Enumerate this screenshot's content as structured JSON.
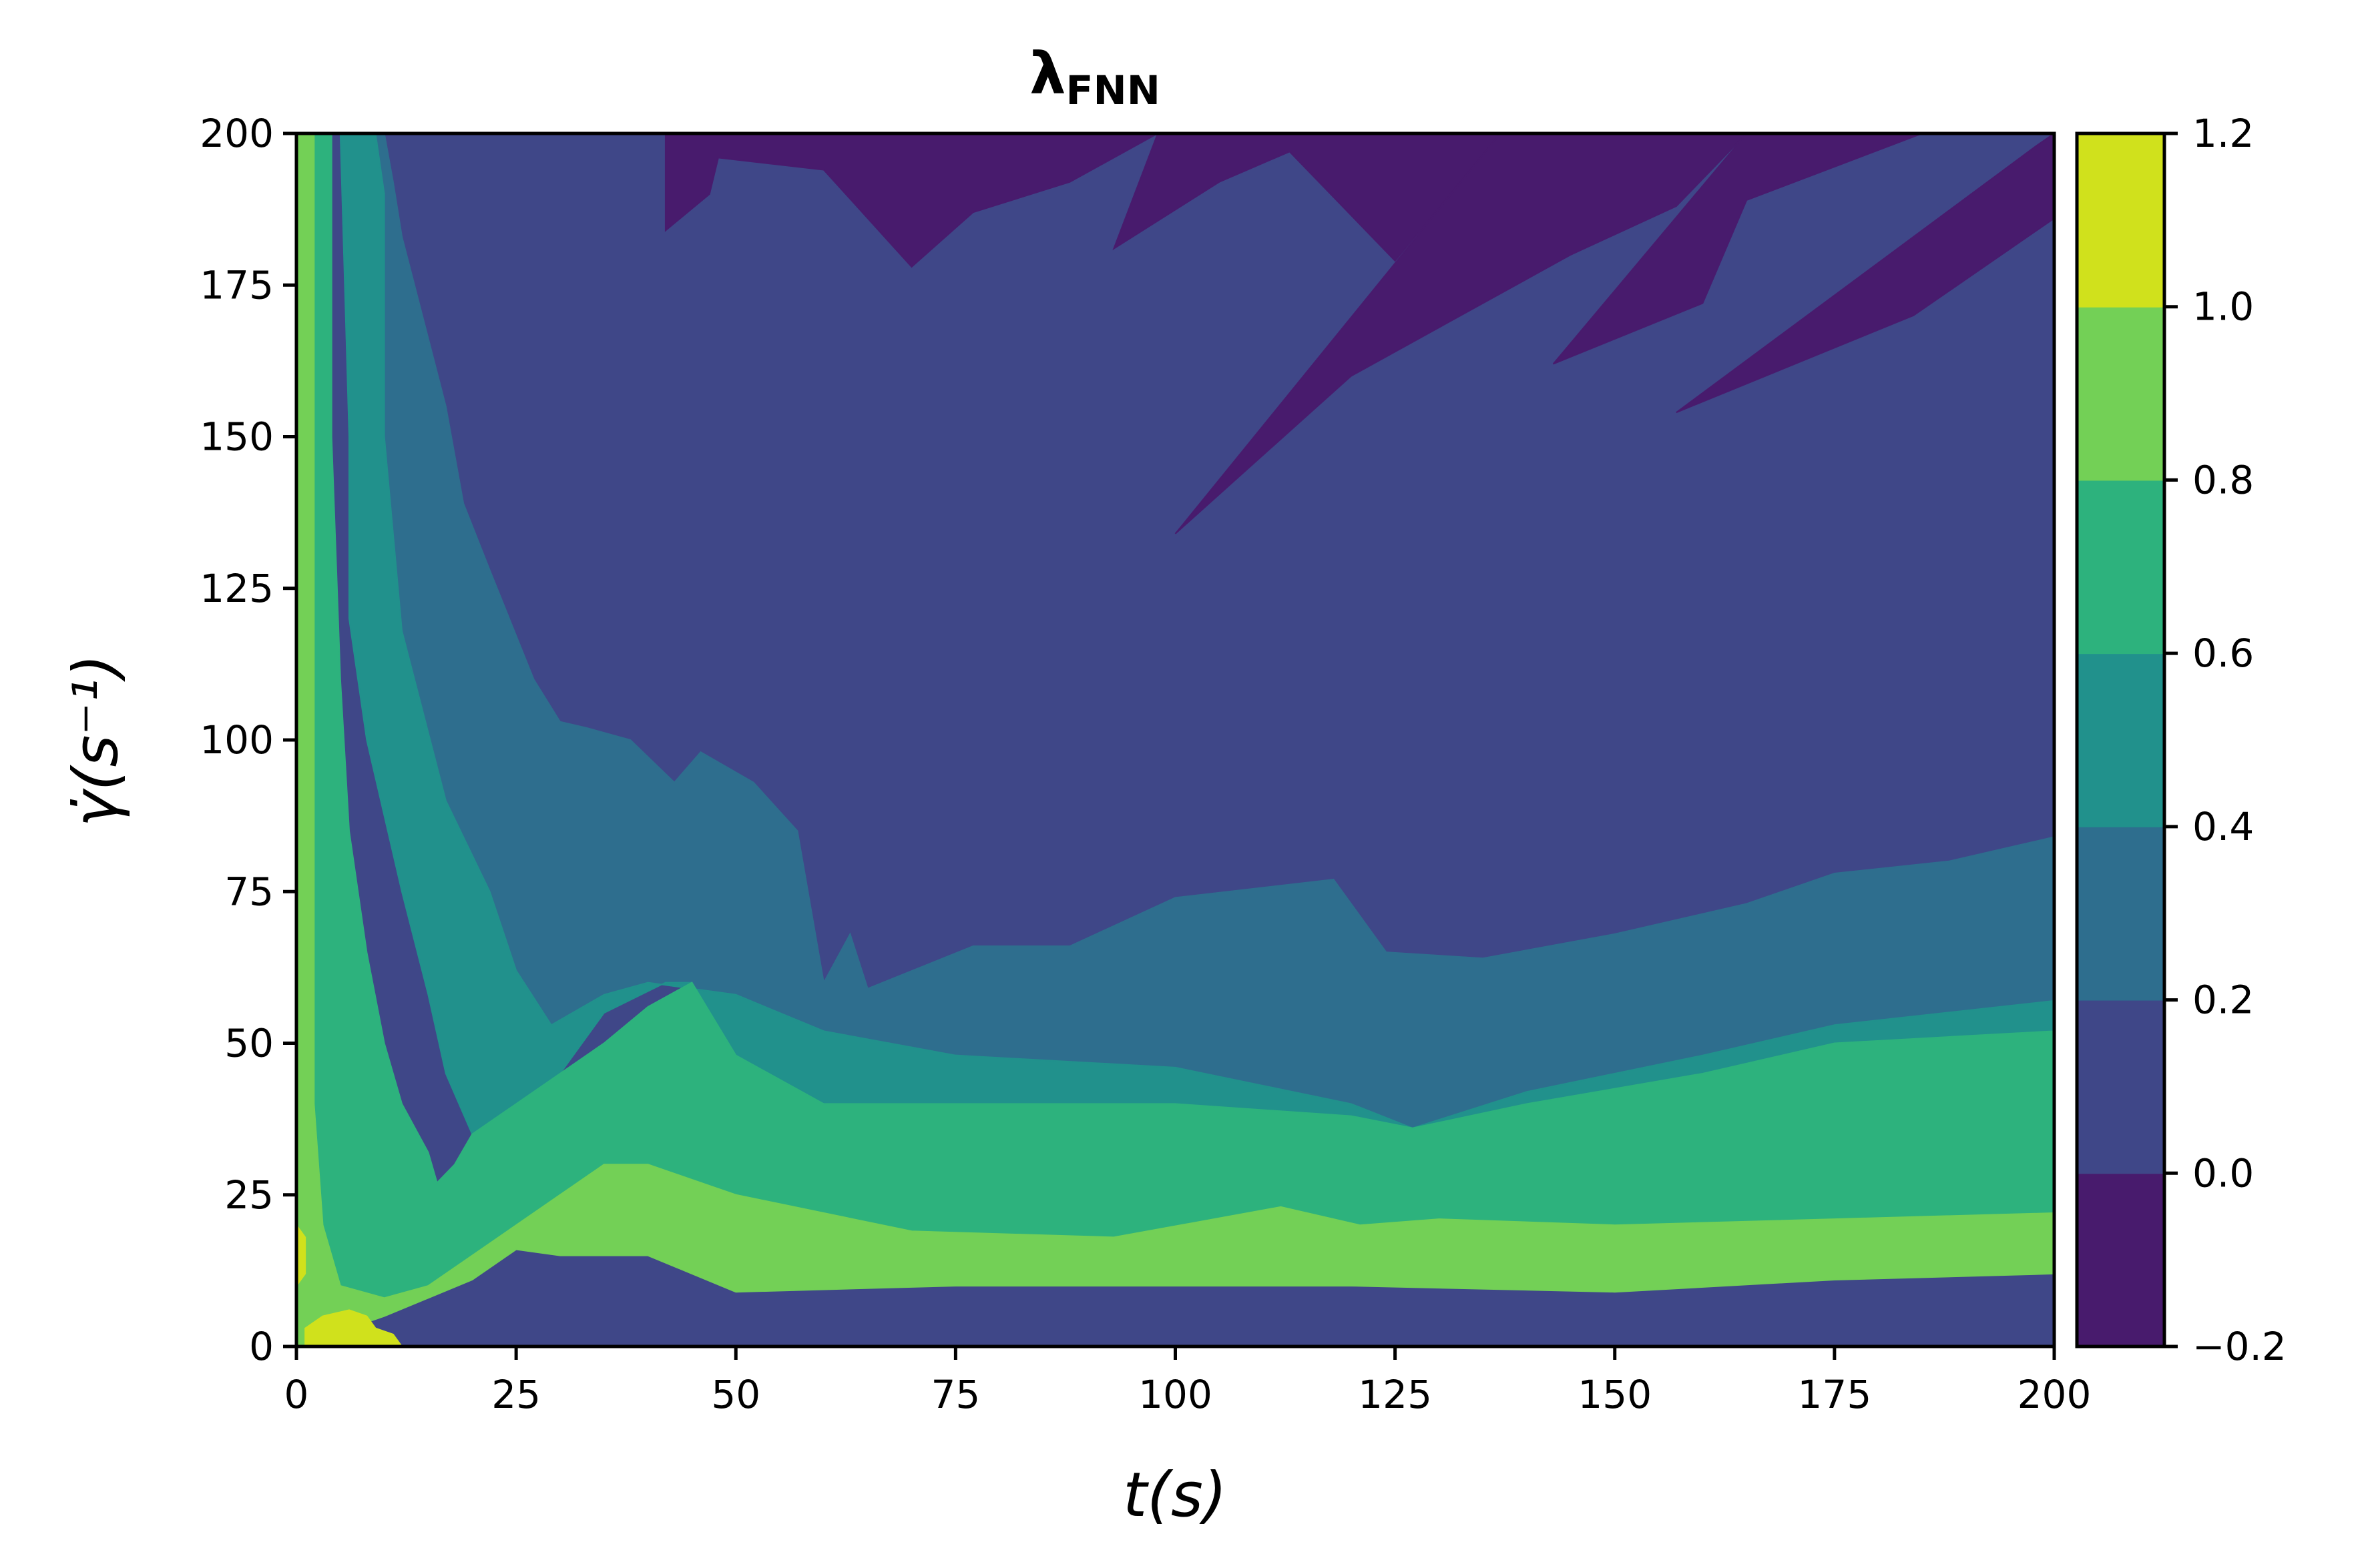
{
  "chart_data": {
    "type": "contourf",
    "title": "λ",
    "title_subscript": "FNN",
    "xlabel": "t(s)",
    "ylabel": "γ̇(s⁻¹)",
    "xlim": [
      0,
      200
    ],
    "ylim": [
      0,
      200
    ],
    "xticks": [
      0,
      25,
      50,
      75,
      100,
      125,
      150,
      175,
      200
    ],
    "yticks": [
      0,
      25,
      50,
      75,
      100,
      125,
      150,
      175,
      200
    ],
    "grid": false,
    "colorbar": {
      "levels": [
        -0.2,
        0.0,
        0.2,
        0.4,
        0.6,
        0.8,
        1.0,
        1.2
      ],
      "tick_labels": [
        "−0.2",
        "0.0",
        "0.2",
        "0.4",
        "0.6",
        "0.8",
        "1.0",
        "1.2"
      ],
      "colors": [
        "#481b6d",
        "#3f4788",
        "#2e6e8e",
        "#21918c",
        "#2db27d",
        "#73d056",
        "#d0e11c"
      ]
    },
    "regions": [
      {
        "level_min": -0.2,
        "level_max": 0.0,
        "polygon": [
          [
            42,
            200
          ],
          [
            42,
            184
          ],
          [
            47,
            190
          ],
          [
            48,
            196
          ],
          [
            60,
            194
          ],
          [
            70,
            178
          ],
          [
            77,
            187
          ],
          [
            88,
            192
          ],
          [
            98,
            200
          ]
        ]
      },
      {
        "level_min": -0.2,
        "level_max": 0.0,
        "polygon": [
          [
            98,
            200
          ],
          [
            93,
            181
          ],
          [
            105,
            192
          ],
          [
            113,
            197
          ],
          [
            125,
            179
          ],
          [
            133,
            193
          ],
          [
            137,
            200
          ]
        ]
      },
      {
        "level_min": -0.2,
        "level_max": 0.0,
        "polygon": [
          [
            137,
            200
          ],
          [
            100,
            134
          ],
          [
            120,
            160
          ],
          [
            145,
            180
          ],
          [
            157,
            188
          ],
          [
            165,
            200
          ]
        ]
      },
      {
        "level_min": -0.2,
        "level_max": 0.0,
        "polygon": [
          [
            165,
            200
          ],
          [
            143,
            162
          ],
          [
            160,
            172
          ],
          [
            165,
            189
          ],
          [
            185,
            200
          ],
          [
            200,
            200
          ],
          [
            200,
            186
          ],
          [
            184,
            170
          ],
          [
            157,
            154
          ],
          [
            198,
            198
          ],
          [
            200,
            200
          ]
        ]
      },
      {
        "level_min": 0.0,
        "level_max": 0.2,
        "polygon": [
          [
            9,
            200
          ],
          [
            200,
            200
          ],
          [
            200,
            84
          ],
          [
            188,
            80
          ],
          [
            175,
            78
          ],
          [
            165,
            73
          ],
          [
            150,
            68
          ],
          [
            135,
            64
          ],
          [
            124,
            65
          ],
          [
            118,
            77
          ],
          [
            100,
            74
          ],
          [
            88,
            66
          ],
          [
            77,
            66
          ],
          [
            65,
            59
          ],
          [
            63,
            68
          ],
          [
            60,
            60
          ],
          [
            57,
            85
          ],
          [
            52,
            93
          ],
          [
            46,
            98
          ],
          [
            43,
            93
          ],
          [
            38,
            100
          ],
          [
            33,
            102
          ],
          [
            30,
            103
          ],
          [
            27,
            110
          ],
          [
            22,
            128
          ],
          [
            19,
            139
          ],
          [
            17,
            155
          ],
          [
            12,
            183
          ],
          [
            11,
            192
          ],
          [
            10,
            200
          ]
        ]
      },
      {
        "level_min": 0.0,
        "level_max": 0.2,
        "polygon": [
          [
            175,
            52
          ],
          [
            188,
            58
          ],
          [
            200,
            66
          ],
          [
            200,
            58
          ],
          [
            190,
            55
          ],
          [
            180,
            53
          ]
        ]
      },
      {
        "level_min": 0.2,
        "level_max": 0.4,
        "polygon": [
          [
            5,
            200
          ],
          [
            9,
            200
          ],
          [
            10,
            190
          ],
          [
            10,
            150
          ],
          [
            12,
            118
          ],
          [
            17,
            90
          ],
          [
            22,
            75
          ],
          [
            25,
            62
          ],
          [
            29,
            53
          ],
          [
            35,
            58
          ],
          [
            40,
            60
          ],
          [
            50,
            58
          ],
          [
            60,
            52
          ],
          [
            75,
            48
          ],
          [
            100,
            46
          ],
          [
            120,
            40
          ],
          [
            127,
            36
          ],
          [
            140,
            42
          ],
          [
            160,
            48
          ],
          [
            175,
            53
          ],
          [
            200,
            57
          ],
          [
            200,
            84
          ],
          [
            188,
            80
          ],
          [
            175,
            78
          ],
          [
            165,
            73
          ],
          [
            150,
            68
          ],
          [
            135,
            64
          ],
          [
            124,
            65
          ],
          [
            118,
            77
          ],
          [
            100,
            74
          ],
          [
            88,
            66
          ],
          [
            77,
            66
          ],
          [
            65,
            59
          ],
          [
            63,
            68
          ],
          [
            60,
            60
          ],
          [
            57,
            85
          ],
          [
            52,
            93
          ],
          [
            46,
            98
          ],
          [
            43,
            93
          ],
          [
            38,
            100
          ],
          [
            33,
            102
          ],
          [
            30,
            103
          ],
          [
            27,
            110
          ],
          [
            22,
            128
          ],
          [
            19,
            139
          ],
          [
            17,
            155
          ],
          [
            12,
            183
          ],
          [
            11,
            192
          ],
          [
            10,
            200
          ]
        ]
      },
      {
        "level_min": 0.4,
        "level_max": 0.6,
        "polygon": [
          [
            4,
            200
          ],
          [
            5,
            200
          ],
          [
            6,
            150
          ],
          [
            6,
            120
          ],
          [
            8,
            100
          ],
          [
            12,
            75
          ],
          [
            15,
            58
          ],
          [
            17,
            45
          ],
          [
            20,
            35
          ],
          [
            25,
            40
          ],
          [
            30,
            45
          ],
          [
            35,
            55
          ],
          [
            42,
            60
          ],
          [
            45,
            60
          ],
          [
            50,
            48
          ],
          [
            60,
            40
          ],
          [
            75,
            40
          ],
          [
            100,
            40
          ],
          [
            120,
            38
          ],
          [
            127,
            36
          ],
          [
            140,
            40
          ],
          [
            160,
            45
          ],
          [
            175,
            50
          ],
          [
            200,
            52
          ],
          [
            200,
            57
          ],
          [
            175,
            53
          ],
          [
            160,
            48
          ],
          [
            140,
            42
          ],
          [
            127,
            36
          ],
          [
            120,
            40
          ],
          [
            100,
            46
          ],
          [
            75,
            48
          ],
          [
            60,
            52
          ],
          [
            50,
            58
          ],
          [
            40,
            60
          ],
          [
            35,
            58
          ],
          [
            29,
            53
          ],
          [
            25,
            62
          ],
          [
            22,
            75
          ],
          [
            17,
            90
          ],
          [
            12,
            118
          ],
          [
            10,
            150
          ],
          [
            10,
            190
          ],
          [
            9,
            200
          ]
        ]
      },
      {
        "level_min": 0.6,
        "level_max": 0.8,
        "polygon": [
          [
            2,
            200
          ],
          [
            4,
            200
          ],
          [
            4,
            150
          ],
          [
            5,
            110
          ],
          [
            6,
            85
          ],
          [
            8,
            65
          ],
          [
            10,
            50
          ],
          [
            12,
            40
          ],
          [
            15,
            32
          ],
          [
            16,
            27
          ],
          [
            18,
            30
          ],
          [
            20,
            35
          ],
          [
            25,
            40
          ],
          [
            30,
            45
          ],
          [
            35,
            50
          ],
          [
            40,
            56
          ],
          [
            45,
            60
          ],
          [
            50,
            48
          ],
          [
            60,
            40
          ],
          [
            75,
            40
          ],
          [
            100,
            40
          ],
          [
            120,
            38
          ],
          [
            127,
            36
          ],
          [
            140,
            40
          ],
          [
            160,
            45
          ],
          [
            175,
            50
          ],
          [
            200,
            52
          ],
          [
            200,
            22
          ],
          [
            175,
            21
          ],
          [
            150,
            20
          ],
          [
            130,
            21
          ],
          [
            121,
            20
          ],
          [
            112,
            23
          ],
          [
            93,
            18
          ],
          [
            70,
            19
          ],
          [
            60,
            22
          ],
          [
            50,
            25
          ],
          [
            40,
            30
          ],
          [
            35,
            30
          ],
          [
            30,
            25
          ],
          [
            25,
            20
          ],
          [
            20,
            15
          ],
          [
            15,
            10
          ],
          [
            10,
            8
          ],
          [
            5,
            10
          ],
          [
            3,
            20
          ],
          [
            2,
            40
          ],
          [
            2,
            100
          ]
        ]
      },
      {
        "level_min": 0.8,
        "level_max": 1.0,
        "polygon": [
          [
            0,
            200
          ],
          [
            2,
            200
          ],
          [
            2,
            100
          ],
          [
            2,
            40
          ],
          [
            3,
            20
          ],
          [
            5,
            10
          ],
          [
            10,
            8
          ],
          [
            15,
            10
          ],
          [
            20,
            15
          ],
          [
            25,
            20
          ],
          [
            30,
            25
          ],
          [
            35,
            30
          ],
          [
            40,
            30
          ],
          [
            50,
            25
          ],
          [
            60,
            22
          ],
          [
            70,
            19
          ],
          [
            93,
            18
          ],
          [
            112,
            23
          ],
          [
            121,
            20
          ],
          [
            130,
            21
          ],
          [
            150,
            20
          ],
          [
            175,
            21
          ],
          [
            200,
            22
          ],
          [
            200,
            12
          ],
          [
            175,
            11
          ],
          [
            150,
            9
          ],
          [
            120,
            10
          ],
          [
            100,
            10
          ],
          [
            75,
            10
          ],
          [
            50,
            9
          ],
          [
            45,
            12
          ],
          [
            40,
            15
          ],
          [
            30,
            15
          ],
          [
            25,
            16
          ],
          [
            20,
            11
          ],
          [
            15,
            8
          ],
          [
            10,
            5
          ],
          [
            6,
            3
          ],
          [
            3,
            2
          ],
          [
            1,
            0
          ],
          [
            0,
            0
          ]
        ]
      },
      {
        "level_min": 1.0,
        "level_max": 1.2,
        "polygon": [
          [
            1,
            0
          ],
          [
            1,
            3
          ],
          [
            3,
            5
          ],
          [
            6,
            6
          ],
          [
            8,
            5
          ],
          [
            9,
            3
          ],
          [
            11,
            2
          ],
          [
            12,
            0
          ]
        ]
      },
      {
        "level_min": 1.0,
        "level_max": 1.2,
        "polygon": [
          [
            0,
            10
          ],
          [
            0,
            20
          ],
          [
            1,
            18
          ],
          [
            1,
            12
          ]
        ]
      }
    ]
  }
}
